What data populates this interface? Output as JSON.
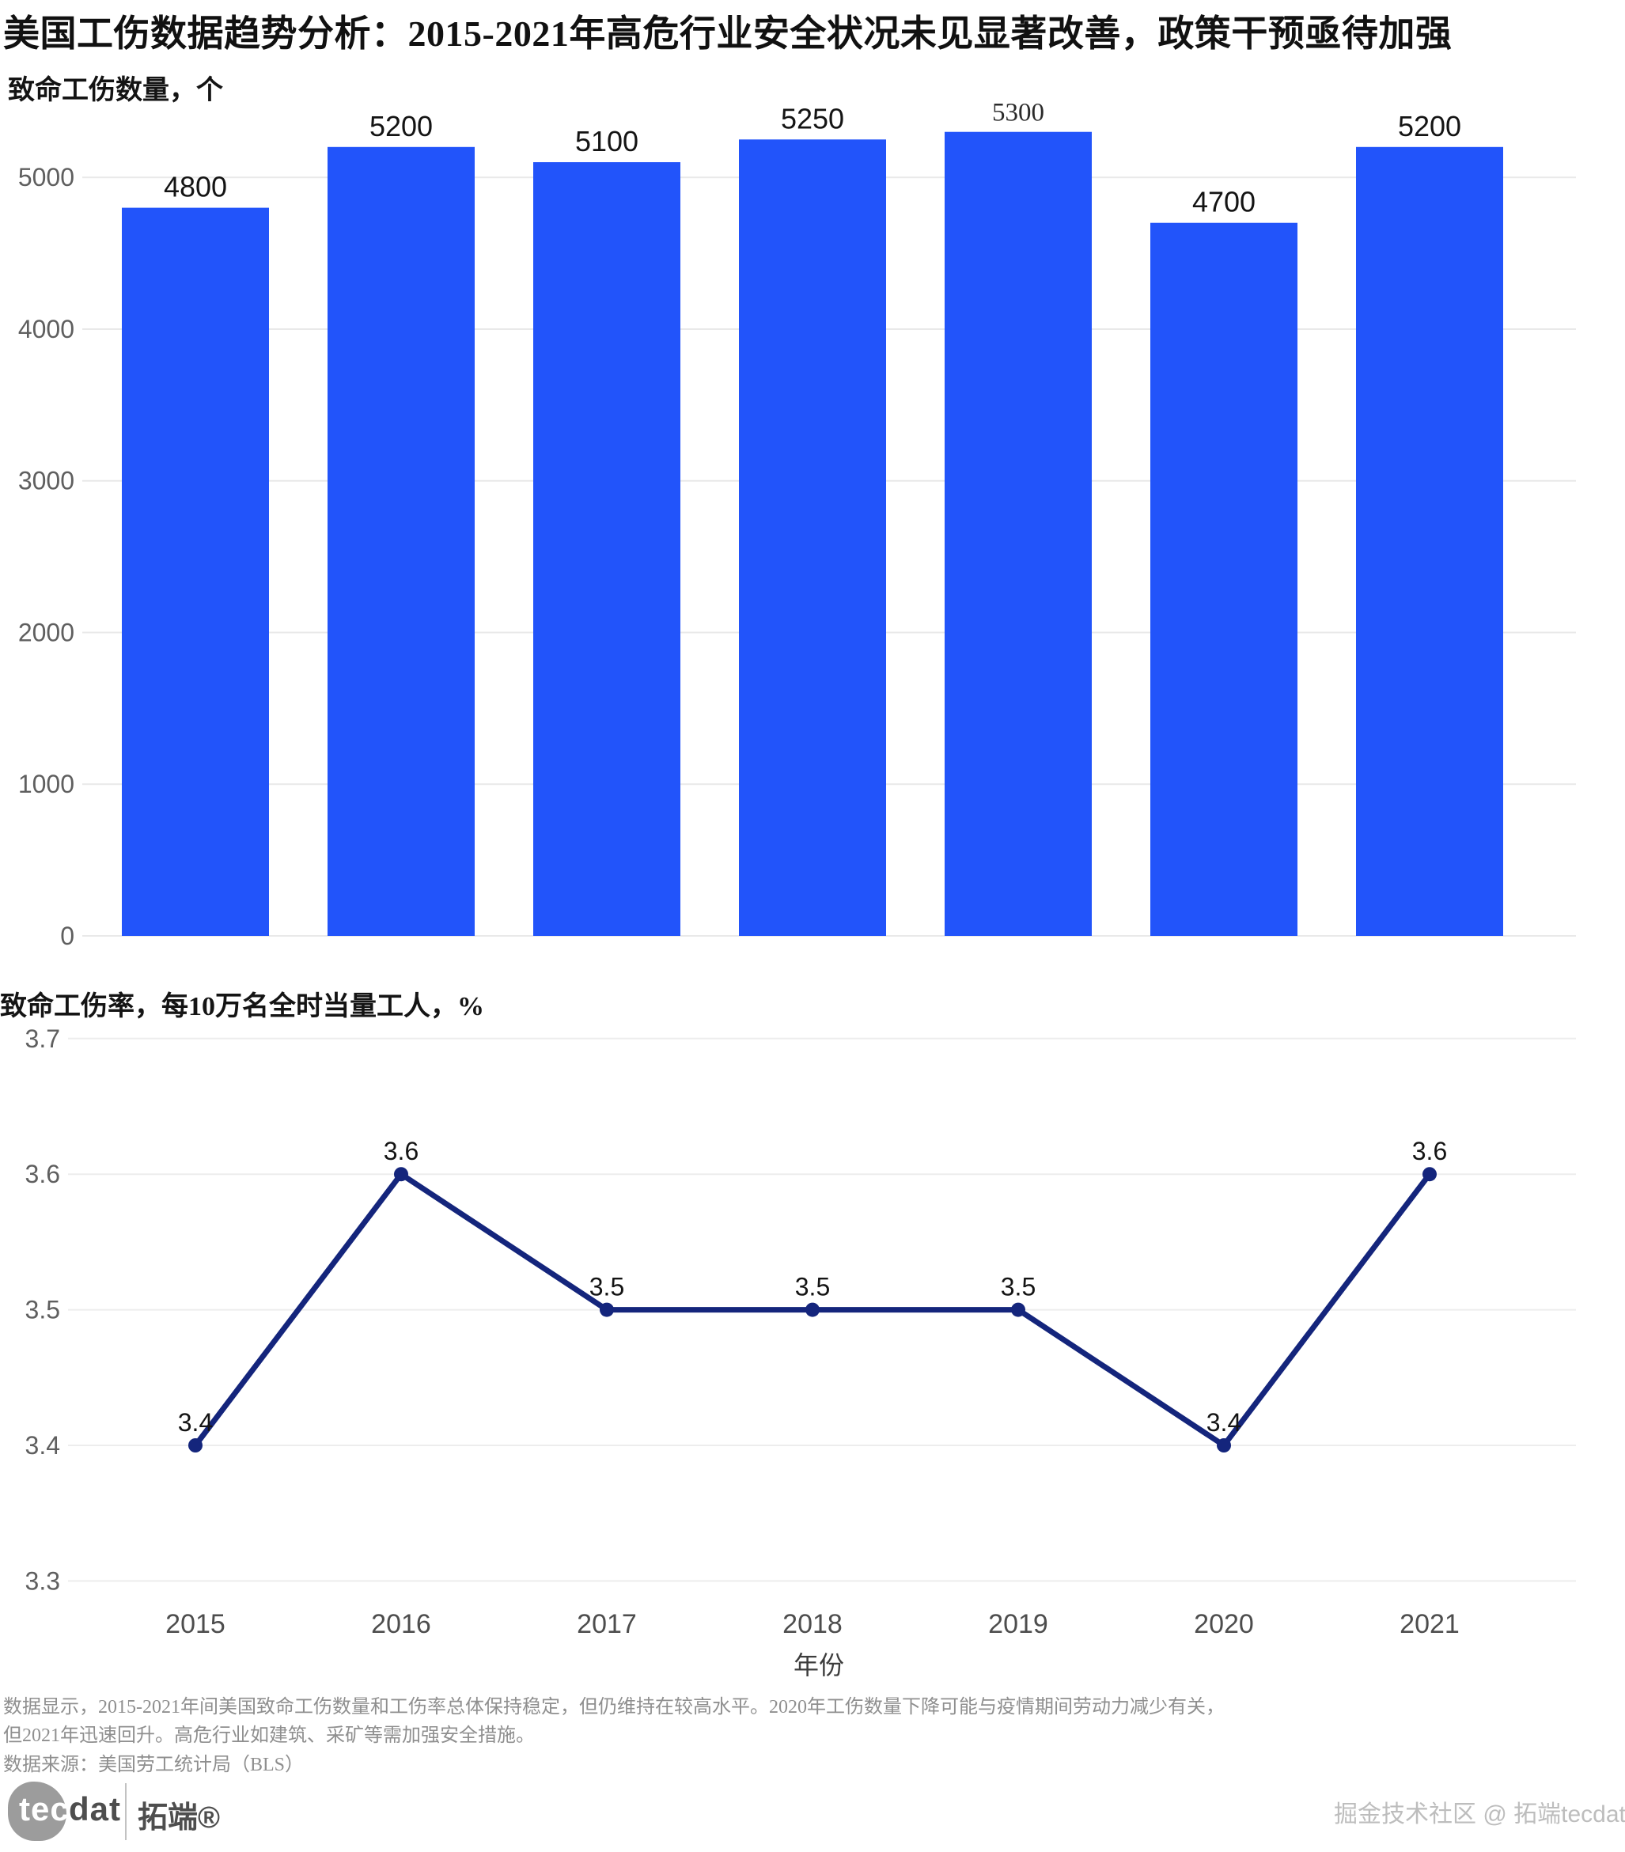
{
  "page": {
    "title": "美国工伤数据趋势分析：2015-2021年高危行业安全状况未见显著改善，政策干预亟待加强"
  },
  "chart_data": [
    {
      "type": "bar",
      "title": "致命工伤数量，个",
      "categories": [
        "2015",
        "2016",
        "2017",
        "2018",
        "2019",
        "2020",
        "2021"
      ],
      "values": [
        4800,
        5200,
        5100,
        5250,
        5300,
        4700,
        5200
      ],
      "yticks": [
        0,
        1000,
        2000,
        3000,
        4000,
        5000
      ],
      "ylim": [
        0,
        5430
      ],
      "grid": true,
      "legend": "none",
      "bar_color": "#2254fa",
      "serif_label_indices": [
        4
      ]
    },
    {
      "type": "line",
      "title": "致命工伤率，每10万名全时当量工人，%",
      "categories": [
        "2015",
        "2016",
        "2017",
        "2018",
        "2019",
        "2020",
        "2021"
      ],
      "values": [
        3.4,
        3.6,
        3.5,
        3.5,
        3.5,
        3.4,
        3.6
      ],
      "yticks": [
        3.3,
        3.4,
        3.5,
        3.6,
        3.7
      ],
      "ylim": [
        3.3,
        3.7
      ],
      "xlabel": "年份",
      "grid": true,
      "legend": "none",
      "line_color": "#14257c"
    }
  ],
  "footer": {
    "note_line1": "数据显示，2015-2021年间美国致命工伤数量和工伤率总体保持稳定，但仍维持在较高水平。2020年工伤数量下降可能与疫情期间劳动力减少有关，",
    "note_line2": "但2021年迅速回升。高危行业如建筑、采矿等需加强安全措施。",
    "source": "数据来源：美国劳工统计局（BLS）"
  },
  "branding": {
    "logo_tec": "tec",
    "logo_dat": "dat",
    "logo_brand": "拓端®",
    "watermark": "掘金技术社区 @ 拓端tecdat"
  }
}
